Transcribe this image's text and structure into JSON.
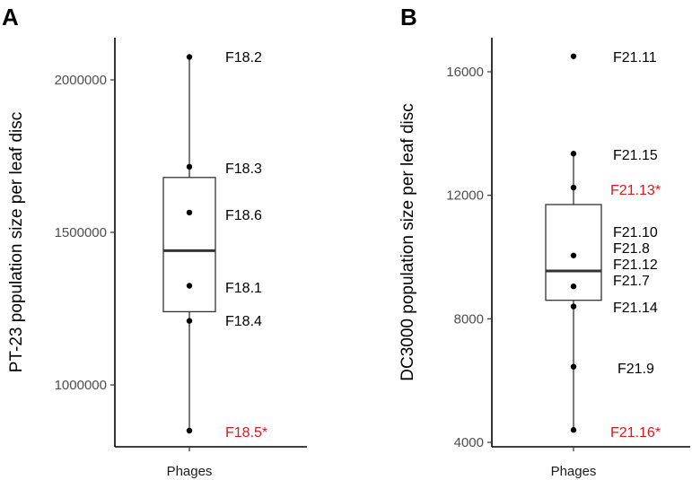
{
  "chart_data": [
    {
      "type": "box",
      "panel_label": "A",
      "ylabel": "PT-23 population size per leaf disc",
      "xlabel": "",
      "x_tick_label": "Phages",
      "ylim": [
        810000,
        2150000
      ],
      "y_ticks": [
        1000000,
        1500000,
        2000000
      ],
      "y_tick_labels": [
        "1000000",
        "1500000",
        "2000000"
      ],
      "box": {
        "whisker_low": 850000,
        "q1": 1240000,
        "median": 1440000,
        "q3": 1680000,
        "whisker_high": 2075000
      },
      "points": [
        {
          "label": "F18.2",
          "value": 2075000,
          "highlight": false
        },
        {
          "label": "F18.3",
          "value": 1715000,
          "highlight": false
        },
        {
          "label": "F18.6",
          "value": 1565000,
          "highlight": false
        },
        {
          "label": "F18.1",
          "value": 1325000,
          "highlight": false
        },
        {
          "label": "F18.4",
          "value": 1210000,
          "highlight": false
        },
        {
          "label": "F18.5*",
          "value": 850000,
          "highlight": true
        }
      ],
      "highlight_color": "#d7191c"
    },
    {
      "type": "box",
      "panel_label": "B",
      "ylabel": "DC3000 population size per leaf disc",
      "xlabel": "",
      "x_tick_label": "Phages",
      "ylim": [
        3780,
        17100
      ],
      "y_ticks": [
        4000,
        8000,
        12000,
        16000
      ],
      "y_tick_labels": [
        "4000",
        "8000",
        "12000",
        "16000"
      ],
      "box": {
        "whisker_low": 4400,
        "q1": 8600,
        "median": 9550,
        "q3": 11700,
        "whisker_high": 13350
      },
      "points": [
        {
          "label": "F21.11",
          "value": 16500,
          "highlight": false
        },
        {
          "label": "F21.15",
          "value": 13350,
          "highlight": false
        },
        {
          "label": "F21.13*",
          "value": 12250,
          "highlight": true
        },
        {
          "label": "F21.10",
          "value": 10050,
          "highlight": false
        },
        {
          "label": "F21.8",
          "value": 9050,
          "highlight": false
        },
        {
          "label": "F21.12",
          "value": 8400,
          "highlight": false
        },
        {
          "label": "F21.7",
          "value": 6450,
          "highlight": false
        },
        {
          "label": "F21.14",
          "value": 4400,
          "highlight": false
        },
        {
          "label": "F21.9",
          "value": null,
          "highlight": false
        },
        {
          "label": "F21.16*",
          "value": null,
          "highlight": true
        }
      ],
      "highlight_color": "#d7191c"
    }
  ]
}
